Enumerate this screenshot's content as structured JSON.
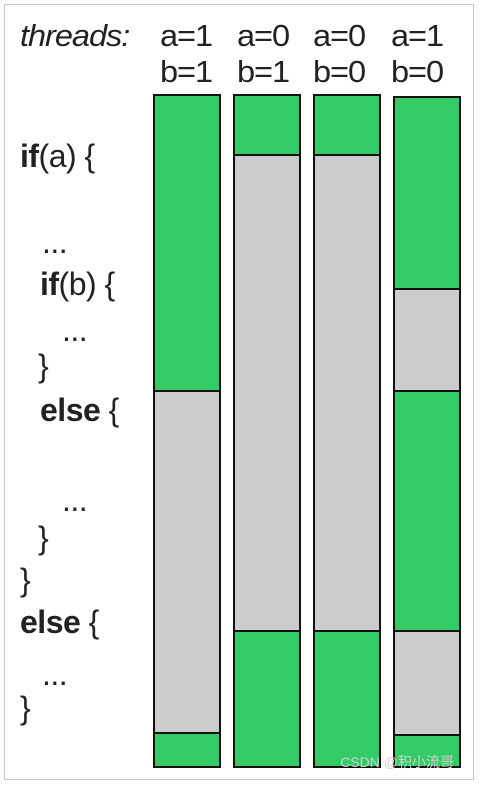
{
  "header": {
    "threads_label": "threads:",
    "columns": [
      {
        "a": "a=1",
        "b": "b=1"
      },
      {
        "a": "a=0",
        "b": "b=1"
      },
      {
        "a": "a=0",
        "b": "b=0"
      },
      {
        "a": "a=1",
        "b": "b=0"
      }
    ]
  },
  "code": {
    "line1_kw": "if",
    "line1_rest": "(a) {",
    "line2": "...",
    "line3_kw": "if",
    "line3_rest": "(b) {",
    "line4": "...",
    "line5": "}",
    "line6_kw": "else",
    "line6_rest": " {",
    "line7": "...",
    "line8": "}",
    "line9": "}",
    "line10_kw": "else",
    "line10_rest": " {",
    "line11": "...",
    "line12": "}"
  },
  "colors": {
    "active": "#33cc66",
    "inactive": "#cccccc"
  },
  "watermark": "CSDN @积小流哥"
}
